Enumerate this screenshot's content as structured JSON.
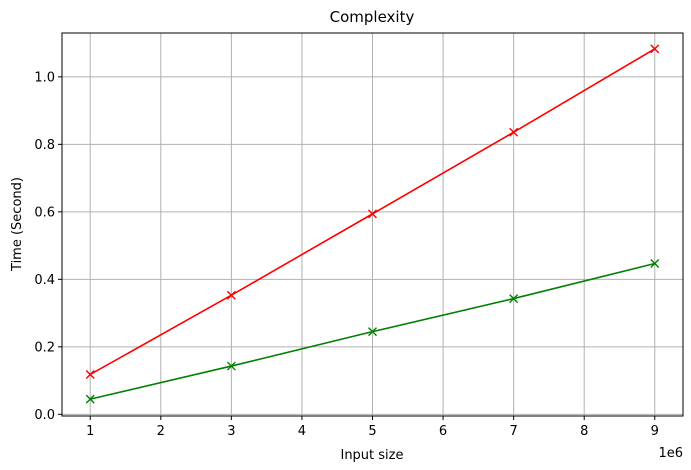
{
  "chart_data": {
    "type": "line",
    "title": "Complexity",
    "xlabel": "Input size",
    "ylabel": "Time (Second)",
    "x_offset_label": "1e6",
    "xlim": [
      0.6,
      9.4
    ],
    "ylim": [
      -0.005,
      1.13
    ],
    "xticks": [
      1,
      2,
      3,
      4,
      5,
      6,
      7,
      8,
      9
    ],
    "yticks": [
      0.0,
      0.2,
      0.4,
      0.6,
      0.8,
      1.0
    ],
    "ytick_labels": [
      "0.0",
      "0.2",
      "0.4",
      "0.6",
      "0.8",
      "1.0"
    ],
    "grid": true,
    "marker": "x",
    "x": [
      1,
      3,
      5,
      7,
      9
    ],
    "series": [
      {
        "color": "#ff0000",
        "values": [
          0.118,
          0.353,
          0.594,
          0.836,
          1.083
        ]
      },
      {
        "color": "#008000",
        "values": [
          0.045,
          0.143,
          0.245,
          0.343,
          0.447
        ]
      }
    ]
  }
}
